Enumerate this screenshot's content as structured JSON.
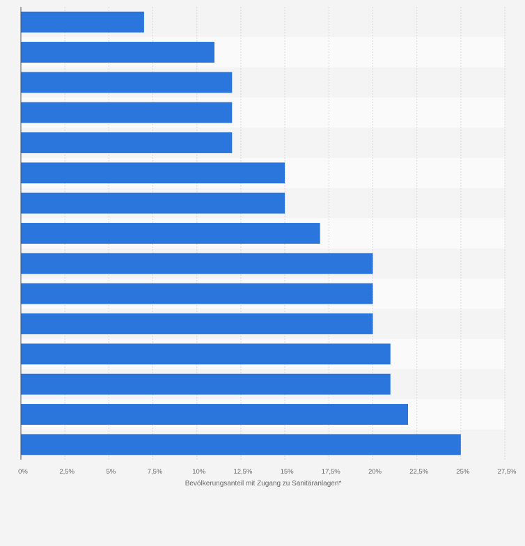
{
  "chart_data": {
    "type": "bar",
    "orientation": "horizontal",
    "values": [
      7,
      11,
      12,
      12,
      12,
      15,
      15,
      17,
      20,
      20,
      20,
      21,
      21,
      22,
      25
    ],
    "xlim": [
      0,
      27.5
    ],
    "x_ticks": [
      "0%",
      "2,5%",
      "5%",
      "7,5%",
      "10%",
      "12,5%",
      "15%",
      "17,5%",
      "20%",
      "22,5%",
      "25%",
      "27,5%"
    ],
    "xlabel": "Bevölkerungsanteil mit Zugang zu Sanitäranlagen*",
    "bar_color": "#2a76dd",
    "grid": true
  }
}
